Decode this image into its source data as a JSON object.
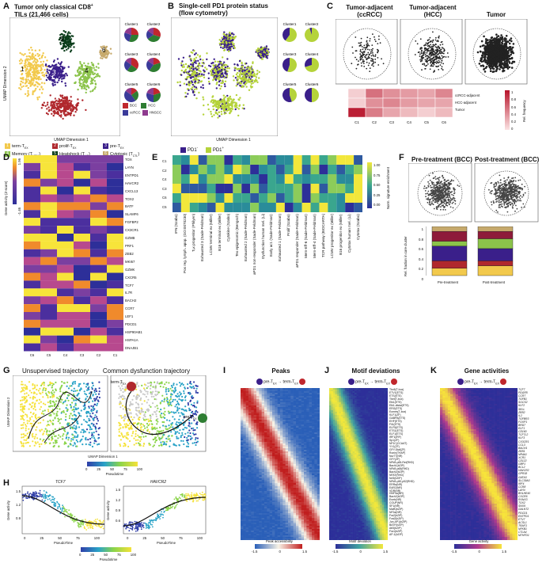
{
  "panelA": {
    "letter": "A",
    "title_line1": "Tumor only classical CD8",
    "title_line2": "TILs (21,466 cells)",
    "xaxis": "UMAP Dimension 1",
    "yaxis": "UMAP Dimension 2",
    "cluster_labels": [
      "1",
      "2",
      "3",
      "4",
      "5",
      "6"
    ],
    "pie_labels": [
      "Cluster1",
      "Cluster2",
      "Cluster3",
      "Cluster4",
      "Cluster5",
      "Cluster6"
    ],
    "pie_legend": [
      {
        "label": "BCC",
        "color": "#c0272d"
      },
      {
        "label": "HCC",
        "color": "#2e7d32"
      },
      {
        "label": "ccRCC",
        "color": "#3b3b9a"
      },
      {
        "label": "HNSCC",
        "color": "#8e3a8e"
      }
    ],
    "pie_fractions": [
      [
        0.25,
        0.3,
        0.25,
        0.2
      ],
      [
        0.3,
        0.35,
        0.2,
        0.15
      ],
      [
        0.35,
        0.25,
        0.25,
        0.15
      ],
      [
        0.2,
        0.4,
        0.25,
        0.15
      ],
      [
        0.15,
        0.25,
        0.45,
        0.15
      ],
      [
        0.2,
        0.3,
        0.3,
        0.2
      ]
    ],
    "legend": [
      {
        "num": "1",
        "label": "term-T",
        "sub": "EX",
        "color": "#f2c94c"
      },
      {
        "num": "2",
        "label": "prolif-T",
        "sub": "EX",
        "color": "#b0282d"
      },
      {
        "num": "3",
        "label": "pre-T",
        "sub": "EX",
        "color": "#3a1f8a"
      },
      {
        "num": "4",
        "label": "Memory (T",
        "sub": "MEM",
        "tail": ")",
        "color": "#8bc34a"
      },
      {
        "num": "5",
        "label": "Heatshock (T",
        "sub": "HS",
        "tail": ")",
        "color": "#0b3d1b"
      },
      {
        "num": "6",
        "label": "Cytotoxic (T",
        "sub": "CTL",
        "tail": ")",
        "color": "#c6a96b"
      }
    ]
  },
  "panelB": {
    "letter": "B",
    "title_line1": "Single-cell PD1 protein status",
    "title_line2": "(flow cytometry)",
    "xaxis": "UMAP Dimension 1",
    "pie_labels": [
      "Cluster1",
      "Cluster2",
      "Cluster3",
      "Cluster4",
      "Cluster5",
      "Cluster6"
    ],
    "pos_fractions": [
      0.6,
      0.95,
      0.55,
      0.7,
      0.45,
      0.5
    ],
    "legend_neg": "PD1",
    "legend_pos": "PD1",
    "neg_sup": "-",
    "pos_sup": "+",
    "neg_color": "#3a1f8a",
    "pos_color": "#b5d33a"
  },
  "panelC": {
    "letter": "C",
    "titles": [
      "Tumor-adjacent (ccRCC)",
      "Tumor-adjacent (HCC)",
      "Tumor"
    ],
    "rows": [
      "ccRCC-adjacent",
      "HCC-adjacent",
      "Tumor"
    ],
    "cols": [
      "C1",
      "C2",
      "C3",
      "C4",
      "C5",
      "C6"
    ],
    "values": [
      [
        0.1,
        0.55,
        0.4,
        0.35,
        0.3,
        0.45
      ],
      [
        0.1,
        0.4,
        0.45,
        0.35,
        0.3,
        0.3
      ],
      [
        0.95,
        0.5,
        0.3,
        0.2,
        0.1,
        0.2
      ]
    ],
    "scale_label": "Rel. frequency",
    "scale_ticks": [
      "1",
      "0.8",
      "0.6",
      "0.4",
      "0.2",
      "0"
    ]
  },
  "panelD": {
    "letter": "D",
    "ylabel": "Gene activity (Z-score)",
    "scale_ticks": [
      "1.96",
      "-1.46"
    ],
    "genes": [
      "TOX",
      "LAYN",
      "ENTPD1",
      "HAVCR2",
      "CXCL13",
      "TOX2",
      "BATF",
      "SLAMF6",
      "FGFBP2",
      "CX3CR1",
      "GZMB",
      "PRF1",
      "ZEB2",
      "MKI67",
      "GZMK",
      "CXCR5",
      "TCF7",
      "IL7R",
      "BACH2",
      "CCR7",
      "LEF1",
      "PDCD1",
      "HSP90AB1",
      "HSPA1A",
      "DNAJB1"
    ],
    "cols": [
      "C6",
      "C5",
      "C4",
      "C3",
      "C2",
      "C1"
    ]
  },
  "panelE": {
    "letter": "E",
    "rows": [
      "C1",
      "C2",
      "C4",
      "C3",
      "C6",
      "C5"
    ],
    "signatures": [
      "IFN (Szabo)",
      "Pos reg. lymph. apop. (GO:0070230)",
      "Tₑx progenitor (Philyen)",
      "Exhausted 3 (Sade-Feldman)",
      "LCMV terminal ex (Miller)",
      "B16 terminal ex (Miller)",
      "Cytokine (Szabo)",
      "Tex epigenomic (Bengsch)",
      "Exhausted 2 (Sade-Feldman)",
      "aPD1 non-responder (Sade-Feldman)",
      "Dysfunction human mel. (Li)",
      "Early act. (Sade-Feldman)",
      "Exhausted 1 (Sade-Feldman)",
      "Prolif (Szabo)",
      "aPD1 responder (Sade-Feldman)",
      "Mem-Eff-6 (Sade-Feldman)",
      "Mem-Eff-4 (Sade-Feldman)",
      "TCR pathway (BIOCARTA)",
      "LCMV progenitor ex (Miller)",
      "B16 progenitor ex (Miller)",
      "Cytotox human mel. (Li)",
      "Cytotox (Szabo)"
    ],
    "scale_label": "Norm. signature enrichment",
    "scale_ticks": [
      "1.00",
      "0.75",
      "0.50",
      "0.25",
      "0.00"
    ]
  },
  "panelF": {
    "letter": "F",
    "titles": [
      "Pre-treatment (BCC)",
      "Post-treatment (BCC)"
    ],
    "ylabel": "Rel. fraction in core cluster",
    "ticks": [
      "1",
      "0.8",
      "0.6",
      "0.4",
      "0.2",
      "0"
    ],
    "bars": [
      {
        "label": "Pre-treatment",
        "segments": [
          0.15,
          0.15,
          0.3,
          0.1,
          0.2,
          0.1
        ]
      },
      {
        "label": "Post-treatment",
        "segments": [
          0.2,
          0.1,
          0.25,
          0.2,
          0.15,
          0.1
        ]
      }
    ],
    "colors": [
      "#f2c94c",
      "#b0282d",
      "#3a1f8a",
      "#8bc34a",
      "#8e1b3a",
      "#c6a96b"
    ]
  },
  "panelG": {
    "letter": "G",
    "titles": [
      "Unsupervised trajectory",
      "Common dysfunction trajectory"
    ],
    "xaxis": "UMAP Dimension 1",
    "yaxis": "UMAP Dimension 2",
    "term_label": "term-T",
    "term_sub": "EX",
    "pre_label": "pre-T",
    "pre_sub": "EX",
    "scale_title": "Pseudotime",
    "scale_ticks": [
      "0",
      "25",
      "50",
      "75",
      "100"
    ]
  },
  "panelH": {
    "letter": "H",
    "genes": [
      "TCF7",
      "HAVCR2"
    ],
    "ylabel": "Gene activity",
    "xlabel": "PseudoTime",
    "x_ticks": [
      "0",
      "25",
      "50",
      "75",
      "100"
    ],
    "y_ticks_left": [
      "1.5",
      "1.2",
      "0.9"
    ],
    "y_ticks_right": [
      "1.5",
      "1.2",
      "0.9",
      "0.6"
    ],
    "scale_title": "Pseudotime",
    "scale_ticks": [
      "0",
      "25",
      "50",
      "75",
      "100"
    ]
  },
  "panelI": {
    "letter": "I",
    "title": "Peaks",
    "from": "pre-T",
    "to": "term-T",
    "sub": "EX",
    "scale_title": "Peak accessibility",
    "scale_ticks": [
      "-1.5",
      "0",
      "1.5"
    ]
  },
  "panelJ": {
    "letter": "J",
    "title": "Motif deviations",
    "from": "pre-T",
    "to": "term-T",
    "sub": "EX",
    "motifs": [
      "Tbx5(T-box)",
      "ETV1(ETS)",
      "ETS(ETS)",
      "Tbet(T-box)",
      "Elk1(ETS)",
      "Elk1-distal(ETS)",
      "ERG(ETS)",
      "Eomes(T-box)",
      "KLF1(ZF)",
      "GABPA(ETS)",
      "EHF(ETS)",
      "Fli1(ETS)",
      "ELF5(ETS)",
      "ETS1(ETS)",
      "ELF1(ETS)",
      "IRF1(IRF)",
      "Sp1(ZF)",
      "NF1C(CCAAT)",
      "YY1(ZF)",
      "GFY-Staf(ZF)",
      "Ronin(THAP)",
      "Nur77(NR)",
      "GFY(ZF)",
      "NFkB-p65-Rel(RHD)",
      "Bach1(bZIP)",
      "NFkB-p65(RHD)",
      "Bach2(bZIP)",
      "NFAT(RHD)",
      "Nrf2(bZIP)",
      "NFkB-p50,p52(RHD)",
      "ERRa(NR)",
      "EAR2(NR)",
      "VDR(NR)",
      "HNF4a(NR)",
      "Bach2(bZIP)",
      "Esrrb(NR)",
      "COUP(NR)",
      "SF1(NR)",
      "MafK(bZIP)",
      "NF2a(NR)",
      "Fra2(bZIP)",
      "Fosl2(bZIP)",
      "Jun-AP1(bZIP)",
      "BATF(bZIP)",
      "Atf3(bZIP)",
      "Fra1(bZIP)",
      "AP-1(bZIP)"
    ],
    "scale_title": "Motif deviation",
    "scale_ticks": [
      "-1.5",
      "0",
      "1.5"
    ]
  },
  "panelK": {
    "letter": "K",
    "title": "Gene activities",
    "from": "pre-T",
    "to": "term-T",
    "sub": "EX",
    "genes": [
      "TCF7",
      "PDGFB",
      "CCR7",
      "TGFB1",
      "SOCS2",
      "KLF2",
      "SELL",
      "ZEB2",
      "IL2",
      "TGFBR3",
      "FOXP1",
      "BRD7",
      "ELF1",
      "CD160",
      "TCF7L2",
      "KLF3",
      "CX3CR1",
      "CCL3",
      "BACH1",
      "ZEB1",
      "NR4A1",
      "XCR1",
      "CD122",
      "GBP1",
      "BCL2",
      "HAVCR2",
      "GPR18",
      "GATA3",
      "SLC39A3",
      "IRF4",
      "CCR8",
      "LAYN",
      "BHLHE40",
      "CXCR6",
      "RUNX3",
      "TOX2",
      "SNX9",
      "GALNT2",
      "PDCD1",
      "ENTPD1",
      "ETV7",
      "ACSL1",
      "TRAF3",
      "NFKB1",
      "CTLA4",
      "MTHFD1"
    ],
    "scale_title": "Gene activity",
    "scale_ticks": [
      "-1.5",
      "0",
      "1.5"
    ]
  }
}
